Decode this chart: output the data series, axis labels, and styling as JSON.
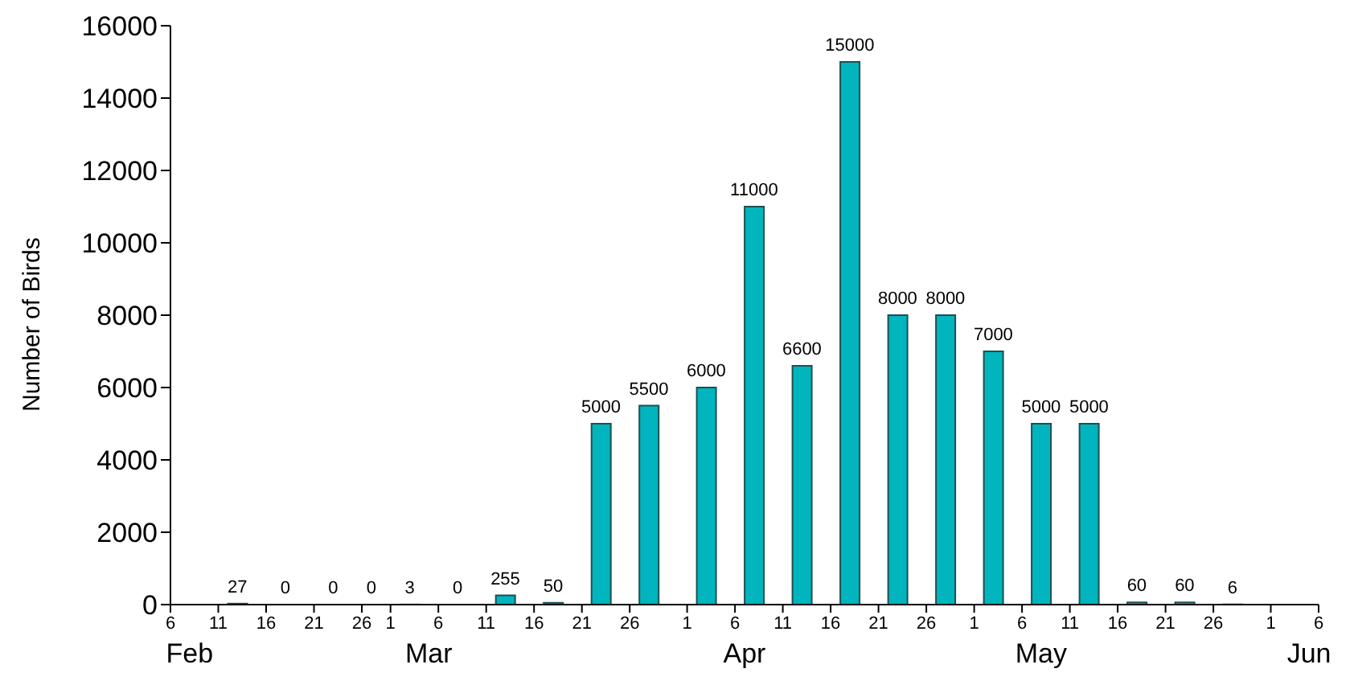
{
  "chart_data": {
    "type": "bar",
    "ylabel": "Number of Birds",
    "x": [
      "--02-13",
      "--02-18",
      "--02-23",
      "--02-27",
      "--03-03",
      "--03-08",
      "--03-13",
      "--03-18",
      "--03-23",
      "--03-28",
      "--04-03",
      "--04-08",
      "--04-13",
      "--04-18",
      "--04-23",
      "--04-28",
      "--05-03",
      "--05-08",
      "--05-13",
      "--05-18",
      "--05-23",
      "--05-28"
    ],
    "values": [
      27,
      0,
      0,
      0,
      3,
      0,
      255,
      50,
      5000,
      5500,
      6000,
      11000,
      6600,
      15000,
      8000,
      8000,
      7000,
      5000,
      5000,
      60,
      60,
      6
    ],
    "color": "#00b5be",
    "data_labels": true,
    "xlim": [
      "--02-06",
      "--06-06"
    ],
    "xticks": [
      {
        "value": "--02-06",
        "label": "6"
      },
      {
        "value": "--02-11",
        "label": "11"
      },
      {
        "value": "--02-16",
        "label": "16"
      },
      {
        "value": "--02-21",
        "label": "21"
      },
      {
        "value": "--02-26",
        "label": "26"
      },
      {
        "value": "--03-01",
        "label": "1"
      },
      {
        "value": "--03-06",
        "label": "6"
      },
      {
        "value": "--03-11",
        "label": "11"
      },
      {
        "value": "--03-16",
        "label": "16"
      },
      {
        "value": "--03-21",
        "label": "21"
      },
      {
        "value": "--03-26",
        "label": "26"
      },
      {
        "value": "--04-01",
        "label": "1"
      },
      {
        "value": "--04-06",
        "label": "6"
      },
      {
        "value": "--04-11",
        "label": "11"
      },
      {
        "value": "--04-16",
        "label": "16"
      },
      {
        "value": "--04-21",
        "label": "21"
      },
      {
        "value": "--04-26",
        "label": "26"
      },
      {
        "value": "--05-01",
        "label": "1"
      },
      {
        "value": "--05-06",
        "label": "6"
      },
      {
        "value": "--05-11",
        "label": "11"
      },
      {
        "value": "--05-16",
        "label": "16"
      },
      {
        "value": "--05-21",
        "label": "21"
      },
      {
        "value": "--05-26",
        "label": "26"
      },
      {
        "value": "--06-01",
        "label": "1"
      },
      {
        "value": "--06-06",
        "label": "6"
      }
    ],
    "ylim": [
      0,
      16000
    ],
    "yticks": [
      0,
      2000,
      4000,
      6000,
      8000,
      10000,
      12000,
      14000,
      16000
    ],
    "x2lim": [
      "--02-06",
      "--06-06"
    ],
    "x2ticks": [
      {
        "value": "--02-08",
        "label": "Feb"
      },
      {
        "value": "--03-05",
        "label": "Mar"
      },
      {
        "value": "--04-07",
        "label": "Apr"
      },
      {
        "value": "--05-08",
        "label": "May"
      },
      {
        "value": "--06-05",
        "label": "Jun"
      }
    ],
    "grid": false,
    "legend": false
  }
}
